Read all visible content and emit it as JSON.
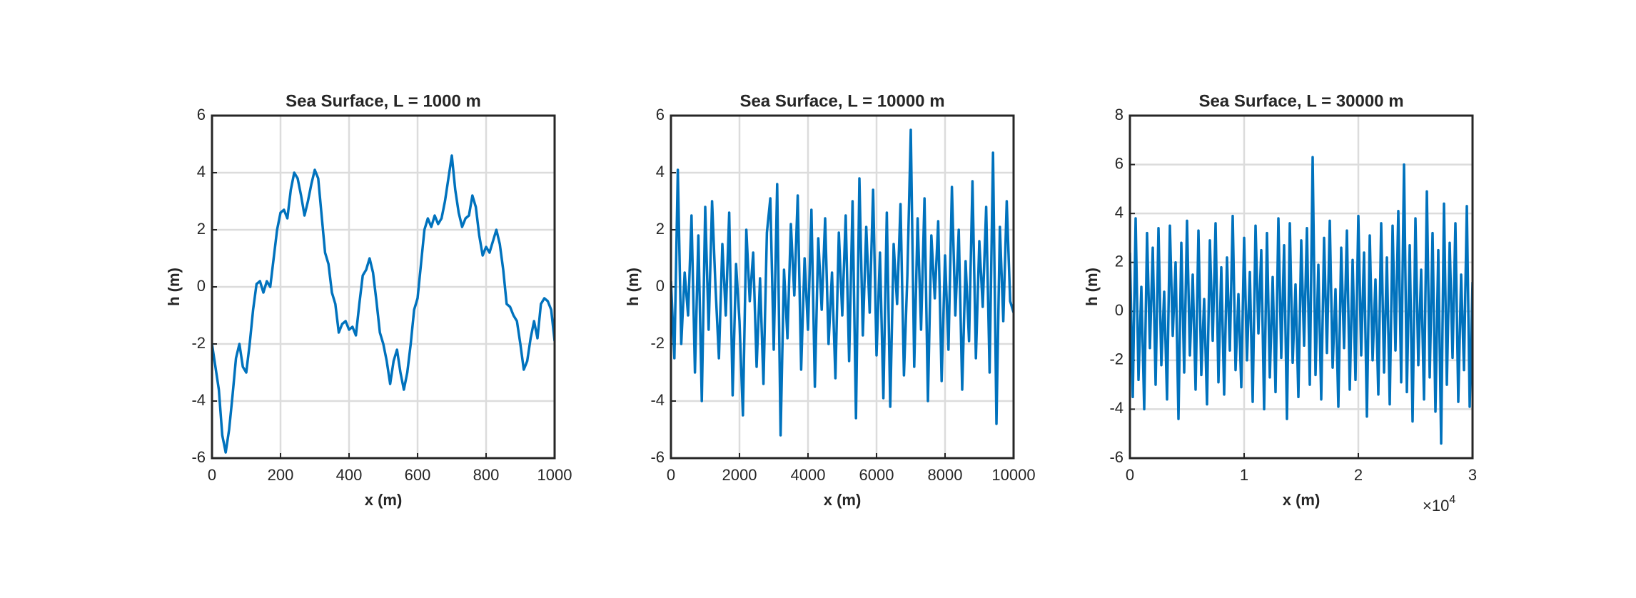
{
  "chart_data": [
    {
      "type": "line",
      "title": "Sea Surface, L = 1000 m",
      "xlabel": "x (m)",
      "ylabel": "h (m)",
      "color": "#0072bd",
      "grid": true,
      "xlim": [
        0,
        1000
      ],
      "xticks": [
        0,
        200,
        400,
        600,
        800,
        1000
      ],
      "ylim": [
        -6,
        6
      ],
      "yticks": [
        -6,
        -4,
        -2,
        0,
        2,
        4,
        6
      ],
      "x": [
        0,
        10,
        20,
        30,
        40,
        50,
        60,
        70,
        80,
        90,
        100,
        110,
        120,
        130,
        140,
        150,
        160,
        170,
        180,
        190,
        200,
        210,
        220,
        230,
        240,
        250,
        260,
        270,
        280,
        290,
        300,
        310,
        320,
        330,
        340,
        350,
        360,
        370,
        380,
        390,
        400,
        410,
        420,
        430,
        440,
        450,
        460,
        470,
        480,
        490,
        500,
        510,
        520,
        530,
        540,
        550,
        560,
        570,
        580,
        590,
        600,
        610,
        620,
        630,
        640,
        650,
        660,
        670,
        680,
        690,
        700,
        710,
        720,
        730,
        740,
        750,
        760,
        770,
        780,
        790,
        800,
        810,
        820,
        830,
        840,
        850,
        860,
        870,
        880,
        890,
        900,
        910,
        920,
        930,
        940,
        950,
        960,
        970,
        980,
        990,
        1000
      ],
      "values": [
        -2,
        -2.8,
        -3.6,
        -5.2,
        -5.8,
        -5.0,
        -3.8,
        -2.5,
        -2.0,
        -2.8,
        -3.0,
        -2.0,
        -0.8,
        0.1,
        0.2,
        -0.2,
        0.2,
        0.0,
        1.0,
        2.0,
        2.6,
        2.7,
        2.4,
        3.4,
        4.0,
        3.8,
        3.2,
        2.5,
        3.0,
        3.6,
        4.1,
        3.8,
        2.5,
        1.2,
        0.8,
        -0.2,
        -0.6,
        -1.6,
        -1.3,
        -1.2,
        -1.5,
        -1.4,
        -1.7,
        -0.6,
        0.4,
        0.6,
        1.0,
        0.5,
        -0.5,
        -1.6,
        -2.0,
        -2.6,
        -3.4,
        -2.6,
        -2.2,
        -3.0,
        -3.6,
        -3.0,
        -2.0,
        -0.8,
        -0.4,
        0.8,
        2.0,
        2.4,
        2.1,
        2.5,
        2.2,
        2.4,
        3.0,
        3.8,
        4.6,
        3.4,
        2.6,
        2.1,
        2.4,
        2.5,
        3.2,
        2.8,
        1.8,
        1.1,
        1.4,
        1.2,
        1.6,
        2.0,
        1.5,
        0.6,
        -0.6,
        -0.7,
        -1.0,
        -1.2,
        -2.0,
        -2.9,
        -2.6,
        -1.8,
        -1.2,
        -1.8,
        -0.6,
        -0.4,
        -0.5,
        -0.8,
        -1.9
      ]
    },
    {
      "type": "line",
      "title": "Sea Surface, L = 10000 m",
      "xlabel": "x (m)",
      "ylabel": "h (m)",
      "color": "#0072bd",
      "grid": true,
      "xlim": [
        0,
        10000
      ],
      "xticks": [
        0,
        2000,
        4000,
        6000,
        8000,
        10000
      ],
      "ylim": [
        -6,
        6
      ],
      "yticks": [
        -6,
        -4,
        -2,
        0,
        2,
        4,
        6
      ],
      "x": [
        0,
        100,
        200,
        300,
        400,
        500,
        600,
        700,
        800,
        900,
        1000,
        1100,
        1200,
        1300,
        1400,
        1500,
        1600,
        1700,
        1800,
        1900,
        2000,
        2100,
        2200,
        2300,
        2400,
        2500,
        2600,
        2700,
        2800,
        2900,
        3000,
        3100,
        3200,
        3300,
        3400,
        3500,
        3600,
        3700,
        3800,
        3900,
        4000,
        4100,
        4200,
        4300,
        4400,
        4500,
        4600,
        4700,
        4800,
        4900,
        5000,
        5100,
        5200,
        5300,
        5400,
        5500,
        5600,
        5700,
        5800,
        5900,
        6000,
        6100,
        6200,
        6300,
        6400,
        6500,
        6600,
        6700,
        6800,
        6900,
        7000,
        7100,
        7200,
        7300,
        7400,
        7500,
        7600,
        7700,
        7800,
        7900,
        8000,
        8100,
        8200,
        8300,
        8400,
        8500,
        8600,
        8700,
        8800,
        8900,
        9000,
        9100,
        9200,
        9300,
        9400,
        9500,
        9600,
        9700,
        9800,
        9900,
        10000
      ],
      "values": [
        0.2,
        -2.5,
        4.1,
        -2.0,
        0.5,
        -1.0,
        2.5,
        -3.0,
        1.8,
        -4.0,
        2.8,
        -1.5,
        3.0,
        0.0,
        -2.5,
        1.5,
        -1.0,
        2.6,
        -3.8,
        0.8,
        -1.2,
        -4.5,
        2.0,
        -0.5,
        1.2,
        -2.8,
        0.3,
        -3.4,
        1.9,
        3.1,
        -2.2,
        3.6,
        -5.2,
        0.6,
        -1.8,
        2.2,
        -0.3,
        3.2,
        -2.9,
        1.0,
        -1.5,
        2.7,
        -3.5,
        1.7,
        -0.8,
        2.4,
        -2.0,
        0.5,
        -3.2,
        1.9,
        -1.0,
        2.5,
        -2.6,
        3.0,
        -4.6,
        3.8,
        -1.7,
        2.1,
        -0.9,
        3.4,
        -2.4,
        1.2,
        -3.9,
        2.6,
        -4.2,
        1.5,
        -0.6,
        2.9,
        -3.1,
        0.4,
        5.5,
        -2.8,
        2.4,
        -1.5,
        3.1,
        -4.0,
        1.8,
        -0.4,
        2.3,
        -3.3,
        1.1,
        -2.2,
        3.5,
        -1.0,
        2.0,
        -3.6,
        0.9,
        -1.9,
        3.7,
        -2.5,
        1.6,
        -0.7,
        2.8,
        -3.0,
        4.7,
        -4.8,
        2.1,
        -1.2,
        3.0,
        -0.5,
        -0.9
      ]
    },
    {
      "type": "line",
      "title": "Sea Surface, L = 30000 m",
      "xlabel": "x (m)",
      "ylabel": "h (m)",
      "color": "#0072bd",
      "grid": true,
      "x_multiplier": "×10",
      "x_multiplier_exponent": "4",
      "xlim": [
        0,
        30000
      ],
      "xticks": [
        {
          "value": 0,
          "label": "0"
        },
        {
          "value": 10000,
          "label": "1"
        },
        {
          "value": 20000,
          "label": "2"
        },
        {
          "value": 30000,
          "label": "3"
        }
      ],
      "ylim": [
        -6,
        8
      ],
      "yticks": [
        -6,
        -4,
        -2,
        0,
        2,
        4,
        6,
        8
      ],
      "x": [
        0,
        250,
        500,
        750,
        1000,
        1250,
        1500,
        1750,
        2000,
        2250,
        2500,
        2750,
        3000,
        3250,
        3500,
        3750,
        4000,
        4250,
        4500,
        4750,
        5000,
        5250,
        5500,
        5750,
        6000,
        6250,
        6500,
        6750,
        7000,
        7250,
        7500,
        7750,
        8000,
        8250,
        8500,
        8750,
        9000,
        9250,
        9500,
        9750,
        10000,
        10250,
        10500,
        10750,
        11000,
        11250,
        11500,
        11750,
        12000,
        12250,
        12500,
        12750,
        13000,
        13250,
        13500,
        13750,
        14000,
        14250,
        14500,
        14750,
        15000,
        15250,
        15500,
        15750,
        16000,
        16250,
        16500,
        16750,
        17000,
        17250,
        17500,
        17750,
        18000,
        18250,
        18500,
        18750,
        19000,
        19250,
        19500,
        19750,
        20000,
        20250,
        20500,
        20750,
        21000,
        21250,
        21500,
        21750,
        22000,
        22250,
        22500,
        22750,
        23000,
        23250,
        23500,
        23750,
        24000,
        24250,
        24500,
        24750,
        25000,
        25250,
        25500,
        25750,
        26000,
        26250,
        26500,
        26750,
        27000,
        27250,
        27500,
        27750,
        28000,
        28250,
        28500,
        28750,
        29000,
        29250,
        29500,
        29750,
        30000
      ],
      "values": [
        2.4,
        -3.5,
        3.8,
        -2.8,
        1.0,
        -4.0,
        3.2,
        -1.5,
        2.6,
        -3.0,
        3.4,
        -2.2,
        0.8,
        -3.6,
        3.5,
        -1.0,
        2.0,
        -4.4,
        2.8,
        -2.5,
        3.7,
        -1.8,
        1.5,
        -3.2,
        3.3,
        -2.6,
        0.5,
        -3.8,
        2.9,
        -1.2,
        3.6,
        -2.9,
        1.8,
        -3.4,
        2.2,
        -1.6,
        3.9,
        -2.4,
        0.7,
        -3.1,
        3.0,
        -2.0,
        1.6,
        -3.7,
        3.5,
        -0.9,
        2.5,
        -4.0,
        3.2,
        -2.7,
        1.4,
        -3.3,
        3.8,
        -1.9,
        2.7,
        -4.4,
        3.6,
        -2.1,
        1.1,
        -3.5,
        2.9,
        -1.4,
        3.4,
        -3.0,
        6.3,
        -2.6,
        1.9,
        -3.6,
        3.0,
        -1.7,
        3.7,
        -2.3,
        0.9,
        -3.9,
        2.6,
        -1.5,
        3.3,
        -3.2,
        2.1,
        -2.8,
        3.9,
        -1.8,
        2.4,
        -4.3,
        3.1,
        -2.0,
        1.3,
        -3.4,
        3.6,
        -2.5,
        2.2,
        -3.8,
        3.5,
        -1.6,
        4.1,
        -2.9,
        6.0,
        -3.3,
        2.7,
        -4.5,
        3.8,
        -2.2,
        1.7,
        -3.6,
        4.9,
        -2.7,
        3.2,
        -4.1,
        2.5,
        -5.4,
        4.4,
        -3.0,
        2.8,
        -1.9,
        3.6,
        -3.7,
        1.5,
        -2.4,
        4.3,
        -3.9,
        1.2
      ]
    }
  ]
}
